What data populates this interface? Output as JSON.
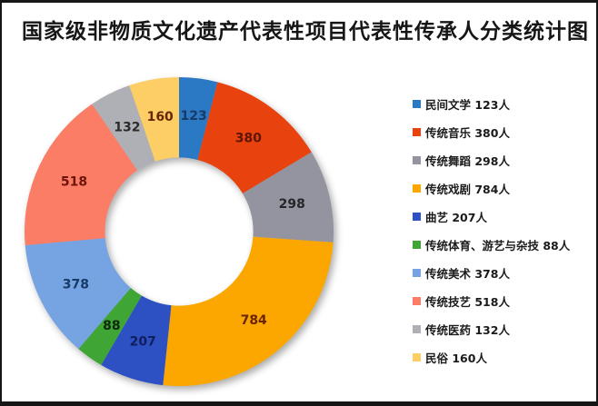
{
  "chart_data": {
    "type": "pie",
    "subtype": "donut",
    "title": "国家级非物质文化遗产代表性项目代表性传承人分类统计图",
    "unit": "人",
    "categories": [
      "民间文学",
      "传统音乐",
      "传统舞蹈",
      "传统戏剧",
      "曲艺",
      "传统体育、游艺与杂技",
      "传统美术",
      "传统技艺",
      "传统医药",
      "民俗"
    ],
    "values": [
      123,
      380,
      298,
      784,
      207,
      88,
      378,
      518,
      132,
      160
    ],
    "colors": [
      "#2B78C5",
      "#E8430E",
      "#93949F",
      "#FBA700",
      "#2D50C3",
      "#3FA535",
      "#76A3E2",
      "#FB7D66",
      "#AFB0B6",
      "#FDCE66"
    ],
    "value_label_colors": [
      "#173A66",
      "#5E1400",
      "#26262A",
      "#6B2400",
      "#101F5C",
      "#10280E",
      "#173A66",
      "#6E140A",
      "#2B2B2B",
      "#6B2400"
    ],
    "data_labels": "values-inside-slices",
    "legend": {
      "position": "right",
      "labels": [
        "民间文学 123人",
        "传统音乐 380人",
        "传统舞蹈 298人",
        "传统戏剧 784人",
        "曲艺 207人",
        "传统体育、游艺与杂技 88人",
        "传统美术 378人",
        "传统技艺 518人",
        "传统医药 132人",
        "民俗 160人"
      ]
    },
    "start_angle_deg": 0,
    "direction": "clockwise",
    "donut_hole_ratio": 0.48
  }
}
